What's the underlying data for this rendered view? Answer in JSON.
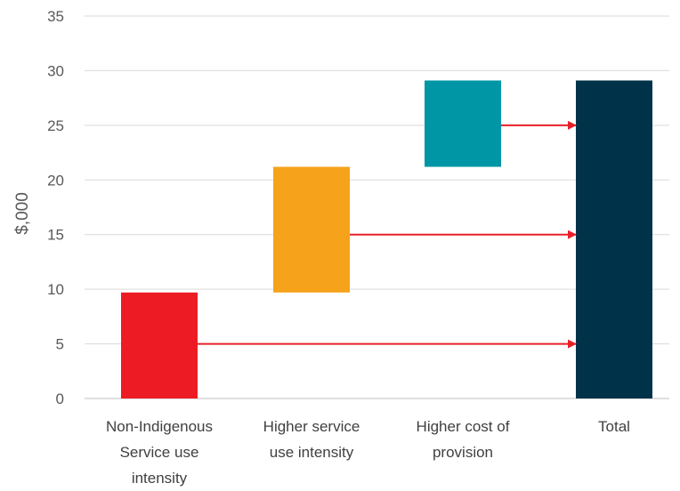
{
  "chart_data": {
    "type": "bar",
    "subtype": "waterfall",
    "ylabel": "$,000",
    "xlabel": "",
    "ylim": [
      0,
      35
    ],
    "yticks": [
      0,
      5,
      10,
      15,
      20,
      25,
      30,
      35
    ],
    "grid": true,
    "categories": [
      [
        "Non-Indigenous",
        "Service use",
        "intensity"
      ],
      [
        "Higher service",
        "use intensity"
      ],
      [
        "Higher cost of",
        "provision"
      ],
      [
        "Total"
      ]
    ],
    "bars": [
      {
        "base": 0,
        "top": 9.7,
        "color": "#ed1c24"
      },
      {
        "base": 9.7,
        "top": 21.2,
        "color": "#f7a21b"
      },
      {
        "base": 21.2,
        "top": 29.1,
        "color": "#0096a6"
      },
      {
        "base": 0,
        "top": 29.1,
        "color": "#003349"
      }
    ],
    "arrows": [
      {
        "from": 0,
        "to": 3,
        "y": 5.0
      },
      {
        "from": 1,
        "to": 3,
        "y": 15.0
      },
      {
        "from": 2,
        "to": 3,
        "y": 25.0
      }
    ],
    "arrow_color": "#e8202a"
  }
}
